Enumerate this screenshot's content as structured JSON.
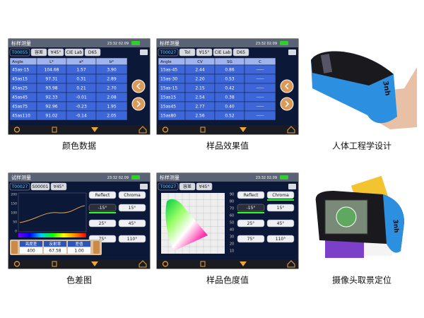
{
  "panels": [
    {
      "screen": {
        "title": "标样测量",
        "time": "23:32 02.09",
        "tabs": [
          "T00055",
          "容差",
          "∀45°",
          "CIE Lab",
          "D65"
        ],
        "table": {
          "header": [
            "Angle",
            "L*",
            "a*",
            "b*"
          ],
          "rows": [
            [
              "45as-15",
              "104.68",
              "1.57",
              "3.90"
            ],
            [
              "45as15",
              "97.31",
              "0.31",
              "2.89"
            ],
            [
              "45as25",
              "93.98",
              "0.21",
              "2.70"
            ],
            [
              "45as45",
              "92.33",
              "-0.01",
              "2.08"
            ],
            [
              "45as75",
              "92.96",
              "-0.23",
              "1.95"
            ],
            [
              "45as110",
              "91.02",
              "-0.14",
              "2.05"
            ]
          ]
        }
      },
      "caption": "颜色数据"
    },
    {
      "screen": {
        "title": "标样测量",
        "time": "23:32 02.09",
        "tabs": [
          "T00027",
          "Tol",
          "∀15°",
          "CIE Lab",
          "D65"
        ],
        "table": {
          "header": [
            "Angle",
            "CV",
            "SG",
            "C"
          ],
          "rows": [
            [
              "15as-45",
              "2.44",
              "0.86",
              "-----"
            ],
            [
              "15as-30",
              "2.20",
              "0.53",
              "-----"
            ],
            [
              "15as-15",
              "2.15",
              "0.42",
              "-----"
            ],
            [
              "15as15",
              "2.54",
              "0.38",
              "-----"
            ],
            [
              "15as45",
              "2.77",
              "0.40",
              "-----"
            ],
            [
              "15as80",
              "2.56",
              "0.52",
              "-----"
            ]
          ]
        }
      },
      "caption": "样品效果值"
    },
    {
      "photo": {
        "logo": "3nh"
      },
      "caption": "人体工程学设计"
    },
    {
      "screen": {
        "title": "试样测量",
        "time": "23:32 02.09",
        "tabs": [
          "T00027",
          "S00001",
          "∀45°"
        ],
        "buttons": [
          "Reflect",
          "Chroma",
          "-15°",
          "15°",
          "25°",
          "45°",
          "75°",
          "110°"
        ],
        "axis_labels": [
          "200",
          "150",
          "100",
          "50",
          "0"
        ],
        "fields": [
          "亮度差",
          "反射率",
          "差值"
        ],
        "field_values": [
          "400",
          "67.58",
          "1.00"
        ]
      },
      "caption": "色差图"
    },
    {
      "screen": {
        "title": "标样测量",
        "time": "23:32 02.09",
        "tabs": [
          "T00027",
          "容差",
          "∀45°"
        ],
        "buttons": [
          "Reflect",
          "Chroma",
          "-15°",
          "15°",
          "25°",
          "45°",
          "75°",
          "110°"
        ],
        "axis_labels": [
          "90",
          "80",
          "70",
          "60",
          "50",
          "40",
          "30",
          "20",
          "10"
        ]
      },
      "caption": "样品色度值"
    },
    {
      "photo": {
        "logo": "3nh"
      },
      "caption": "摄像头取景定位"
    }
  ]
}
